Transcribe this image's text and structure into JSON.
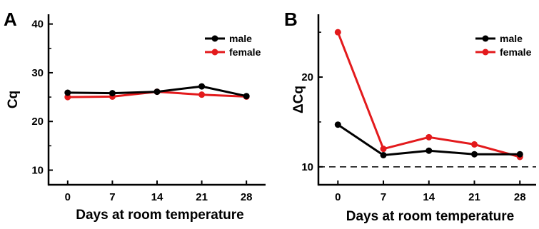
{
  "chart_data": [
    {
      "type": "line",
      "panel_label": "A",
      "x": [
        0,
        7,
        14,
        21,
        28
      ],
      "xticks": [
        "0",
        "7",
        "14",
        "21",
        "28"
      ],
      "xlabel": "Days at room temperature",
      "ylabel": "Cq",
      "ylim": [
        7,
        42
      ],
      "yticks": [
        "10",
        "20",
        "30",
        "40"
      ],
      "legend_position": "top-right",
      "grid": false,
      "series": [
        {
          "name": "male",
          "color": "#000000",
          "values": [
            25.9,
            25.8,
            26.1,
            27.2,
            25.2
          ]
        },
        {
          "name": "female",
          "color": "#e31a1c",
          "values": [
            25.0,
            25.1,
            26.1,
            25.5,
            25.1
          ]
        }
      ]
    },
    {
      "type": "line",
      "panel_label": "B",
      "x": [
        0,
        7,
        14,
        21,
        28
      ],
      "xticks": [
        "0",
        "7",
        "14",
        "21",
        "28"
      ],
      "xlabel": "Days at room temperature",
      "ylabel": "ΔCq",
      "ylim": [
        8,
        27
      ],
      "yticks": [
        "10",
        "20"
      ],
      "reference_line": {
        "y": 10,
        "style": "dashed"
      },
      "legend_position": "top-right",
      "grid": false,
      "series": [
        {
          "name": "male",
          "color": "#000000",
          "values": [
            14.7,
            11.3,
            11.8,
            11.4,
            11.4
          ]
        },
        {
          "name": "female",
          "color": "#e31a1c",
          "values": [
            25.0,
            12.0,
            13.3,
            12.5,
            11.1
          ]
        }
      ]
    }
  ]
}
